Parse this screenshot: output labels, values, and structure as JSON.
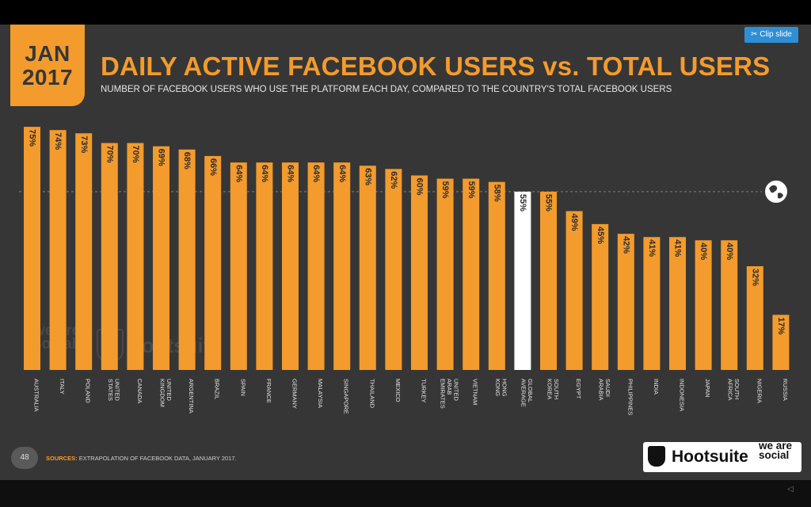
{
  "header": {
    "date_month": "JAN",
    "date_year": "2017",
    "clip_label": "Clip slide"
  },
  "chart_data": {
    "type": "bar",
    "title": "DAILY ACTIVE FACEBOOK USERS vs. TOTAL USERS",
    "subtitle": "NUMBER OF FACEBOOK USERS WHO USE THE PLATFORM EACH DAY, COMPARED TO THE COUNTRY'S TOTAL FACEBOOK USERS",
    "unit": "%",
    "categories": [
      "AUSTRALIA",
      "ITALY",
      "POLAND",
      "UNITED STATES",
      "CANADA",
      "UNITED KINGDOM",
      "ARGENTINA",
      "BRAZIL",
      "SPAIN",
      "FRANCE",
      "GERMANY",
      "MALAYSIA",
      "SINGAPORE",
      "THAILAND",
      "MEXICO",
      "TURKEY",
      "UNITED ARAB EMIRATES",
      "VIETNAM",
      "HONG KONG",
      "GLOBAL AVERAGE",
      "SOUTH KOREA",
      "EGYPT",
      "SAUDI ARABIA",
      "PHILIPPINES",
      "INDIA",
      "INDONESIA",
      "JAPAN",
      "SOUTH AFRICA",
      "NIGERIA",
      "RUSSIA"
    ],
    "values": [
      75,
      74,
      73,
      70,
      70,
      69,
      68,
      66,
      64,
      64,
      64,
      64,
      64,
      63,
      62,
      60,
      59,
      59,
      58,
      55,
      55,
      49,
      45,
      42,
      41,
      41,
      40,
      40,
      32,
      17
    ],
    "value_labels": [
      "75%",
      "74%",
      "73%",
      "70%",
      "70%",
      "69%",
      "68%",
      "66%",
      "64%",
      "64%",
      "64%",
      "64%",
      "64%",
      "63%",
      "62%",
      "60%",
      "59%",
      "59%",
      "58%",
      "55%",
      "55%",
      "49%",
      "45%",
      "42%",
      "41%",
      "41%",
      "40%",
      "40%",
      "32%",
      "17%"
    ],
    "highlight_category": "GLOBAL AVERAGE",
    "reference_line": {
      "value": 55,
      "label": "GLOBAL AVERAGE"
    },
    "colors": {
      "bar": "#f39b2c",
      "highlight": "#ffffff",
      "background": "#363636",
      "reference": "#8a8a8a"
    },
    "ylim": [
      0,
      76
    ],
    "grid": false
  },
  "watermark": {
    "left": "we are social",
    "right": "Hootsuite"
  },
  "footer": {
    "page_number": "48",
    "sources_label": "SOURCES:",
    "sources_text": "EXTRAPOLATION OF FACEBOOK DATA, JANUARY 2017.",
    "brand_hootsuite": "Hootsuite",
    "brand_we_are_social": "we are social",
    "hootsuite_icon": "owl-icon"
  }
}
